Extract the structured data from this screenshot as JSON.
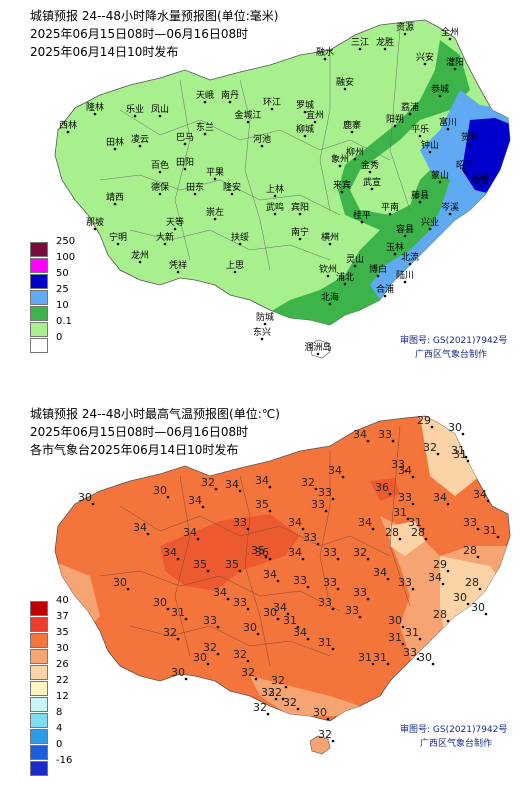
{
  "rain_map": {
    "title_line1": "城镇预报 24--48小时降水量预报图(单位:毫米)",
    "title_line2": "2025年06月15日08时—06月16日08时",
    "title_line3": "2025年06月14日10时发布",
    "legend": [
      {
        "label": "250",
        "color": "#7a0b3f"
      },
      {
        "label": "100",
        "color": "#ff00ff"
      },
      {
        "label": "50",
        "color": "#0000cd"
      },
      {
        "label": "25",
        "color": "#5faaf2"
      },
      {
        "label": "10",
        "color": "#3cb44a"
      },
      {
        "label": "0.1",
        "color": "#a8ef8e"
      },
      {
        "label": "0",
        "color": "#ffffff"
      }
    ],
    "map_no": "审图号: GS(2021)7942号",
    "producer": "广西区气象台制作",
    "cities": [
      "资源",
      "全州",
      "三江",
      "龙胜",
      "兴安",
      "灌阳",
      "融安",
      "恭城",
      "隆林",
      "西林",
      "乐业",
      "凤山",
      "天峨",
      "南丹",
      "环江",
      "金城江",
      "东兰",
      "宜州",
      "田林",
      "凌云",
      "巴马",
      "河池",
      "罗城",
      "柳城",
      "柳州",
      "鹿寨",
      "荔浦",
      "阳朔",
      "平乐",
      "钟山",
      "贺州",
      "昭平",
      "蒙山",
      "金秀",
      "象州",
      "来宾",
      "武宣",
      "桂平",
      "平南",
      "藤县",
      "苍梧",
      "岑溪",
      "容县",
      "玉林",
      "北流",
      "陆川",
      "博白",
      "北海",
      "钦州",
      "防城",
      "东兴",
      "南宁",
      "武鸣",
      "上林",
      "宾阳",
      "横州",
      "灵山",
      "浦北",
      "合浦",
      "田阳",
      "田东",
      "平果",
      "百色",
      "德保",
      "靖西",
      "那坡",
      "天等",
      "大新",
      "隆安",
      "崇左",
      "扶绥",
      "凭祥",
      "龙州",
      "宁明",
      "上思",
      "融水",
      "富川",
      "兴业",
      "涠洲岛"
    ]
  },
  "temp_map": {
    "title_line1": "城镇预报 24--48小时最高气温预报图(单位:℃)",
    "title_line2": "2025年06月15日08时—06月16日08时",
    "title_line3": "各市气象台2025年06月14日10时发布",
    "legend": [
      {
        "label": "40",
        "color": "#c00000"
      },
      {
        "label": "37",
        "color": "#ee3b2d"
      },
      {
        "label": "35",
        "color": "#f4753c"
      },
      {
        "label": "30",
        "color": "#f7a473"
      },
      {
        "label": "26",
        "color": "#fbd3a6"
      },
      {
        "label": "22",
        "color": "#fff6c0"
      },
      {
        "label": "12",
        "color": "#c8f6f6"
      },
      {
        "label": "8",
        "color": "#7fdcf2"
      },
      {
        "label": "4",
        "color": "#2e9be6"
      },
      {
        "label": "0",
        "color": "#1c5ddb"
      },
      {
        "label": "-16",
        "color": "#1a2bc7"
      }
    ],
    "map_no": "审图号: GS(2021)7942号",
    "producer": "广西区气象台制作",
    "values": [
      "29",
      "30",
      "34",
      "33",
      "32",
      "31",
      "34",
      "33",
      "34",
      "31",
      "36",
      "33",
      "34",
      "34",
      "32",
      "33",
      "33",
      "31",
      "34",
      "31",
      "33",
      "34",
      "34",
      "32",
      "30",
      "34",
      "35",
      "34",
      "33",
      "30",
      "34",
      "34",
      "35",
      "33",
      "28",
      "28",
      "34",
      "35",
      "35",
      "36",
      "34",
      "33",
      "32",
      "34",
      "33",
      "33",
      "34",
      "33",
      "33",
      "30",
      "30",
      "29",
      "28",
      "31",
      "30",
      "34",
      "33",
      "28",
      "30",
      "31",
      "33",
      "33",
      "34",
      "33",
      "30",
      "31",
      "31",
      "33",
      "28",
      "30",
      "31",
      "31",
      "34",
      "34",
      "30",
      "32",
      "32",
      "31",
      "30",
      "32",
      "31",
      "30",
      "30",
      "32",
      "32",
      "32",
      "32",
      "30",
      "32",
      "32",
      "32"
    ]
  }
}
